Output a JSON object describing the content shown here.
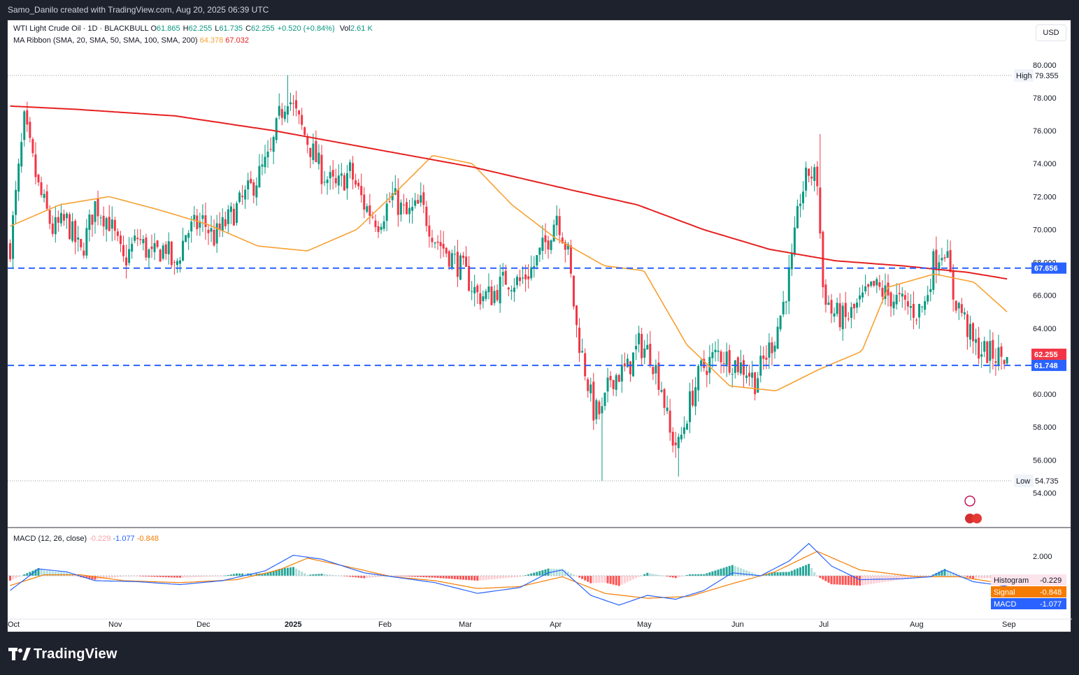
{
  "header": {
    "credit": "Samo_Danilo created with TradingView.com, Aug 20, 2025 06:39 UTC"
  },
  "legend": {
    "symbol": "WTI Light Crude Oil · 1D · BLACKBULL",
    "ohlc": [
      {
        "k": "O",
        "v": "61.865"
      },
      {
        "k": "H",
        "v": "62.255"
      },
      {
        "k": "L",
        "v": "61.735"
      },
      {
        "k": "C",
        "v": "62.255"
      },
      {
        "k": "",
        "v": "+0.520 (+0.84%)"
      }
    ],
    "vol_label": "Vol",
    "vol_value": "2.61 K",
    "ma_label": "MA Ribbon (SMA, 20, SMA, 50, SMA, 100, SMA, 200)",
    "ma_values": [
      "64.378",
      "67.032"
    ],
    "macd_label": "MACD (12, 26, close)",
    "macd_values": [
      "-0.229",
      "-1.077",
      "-0.848"
    ]
  },
  "currency_button": "USD",
  "brand": {
    "name": "TradingView"
  },
  "colors": {
    "up": "#089981",
    "down": "#f23645",
    "ma20": "#f7a133",
    "ma200": "#e62020",
    "level": "#2962ff",
    "macd": "#2962ff",
    "signal": "#f57c00"
  },
  "chart_data": {
    "type": "candlestick",
    "ylim": [
      53.0,
      80.8
    ],
    "price_ticks": [
      "80.000",
      "78.000",
      "76.000",
      "74.000",
      "72.000",
      "70.000",
      "68.000",
      "66.000",
      "64.000",
      "62.000",
      "60.000",
      "58.000",
      "56.000",
      "54.000"
    ],
    "x_labels": [
      "Oct",
      "Nov",
      "Dec",
      "2025",
      "Feb",
      "Mar",
      "Apr",
      "May",
      "Jun",
      "Jul",
      "Aug",
      "Sep"
    ],
    "high": {
      "label": "High",
      "value": "79.355"
    },
    "low": {
      "label": "Low",
      "value": "54.735"
    },
    "levels": [
      {
        "value": 67.656,
        "label": "67.656"
      },
      {
        "value": 61.748,
        "label": "61.748"
      }
    ],
    "last_price": {
      "value": 62.255,
      "label": "62.255"
    },
    "ma20_series_approx": [
      [
        0,
        70.2
      ],
      [
        15,
        71.5
      ],
      [
        30,
        72.0
      ],
      [
        45,
        71.2
      ],
      [
        60,
        70.3
      ],
      [
        75,
        69.0
      ],
      [
        90,
        68.7
      ],
      [
        105,
        70.0
      ],
      [
        118,
        72.5
      ],
      [
        128,
        74.5
      ],
      [
        140,
        74.0
      ],
      [
        152,
        71.5
      ],
      [
        165,
        69.5
      ],
      [
        180,
        67.8
      ],
      [
        192,
        67.5
      ],
      [
        205,
        63.0
      ],
      [
        218,
        60.5
      ],
      [
        232,
        60.2
      ],
      [
        245,
        61.5
      ],
      [
        258,
        62.6
      ],
      [
        266,
        66.5
      ],
      [
        280,
        67.3
      ],
      [
        292,
        66.8
      ],
      [
        302,
        65.0
      ]
    ],
    "ma200_series_approx": [
      [
        0,
        77.5
      ],
      [
        20,
        77.3
      ],
      [
        50,
        76.9
      ],
      [
        80,
        76.0
      ],
      [
        110,
        74.9
      ],
      [
        140,
        73.8
      ],
      [
        170,
        72.4
      ],
      [
        190,
        71.5
      ],
      [
        210,
        70.0
      ],
      [
        230,
        68.8
      ],
      [
        250,
        68.1
      ],
      [
        270,
        67.8
      ],
      [
        290,
        67.4
      ],
      [
        302,
        67.0
      ]
    ],
    "macd": {
      "ticks": [
        "2.000"
      ],
      "histogram": {
        "label": "Histogram",
        "value": "-0.229"
      },
      "signal": {
        "label": "Signal",
        "value": "-0.848"
      },
      "macd": {
        "label": "MACD",
        "value": "-1.077"
      }
    }
  }
}
